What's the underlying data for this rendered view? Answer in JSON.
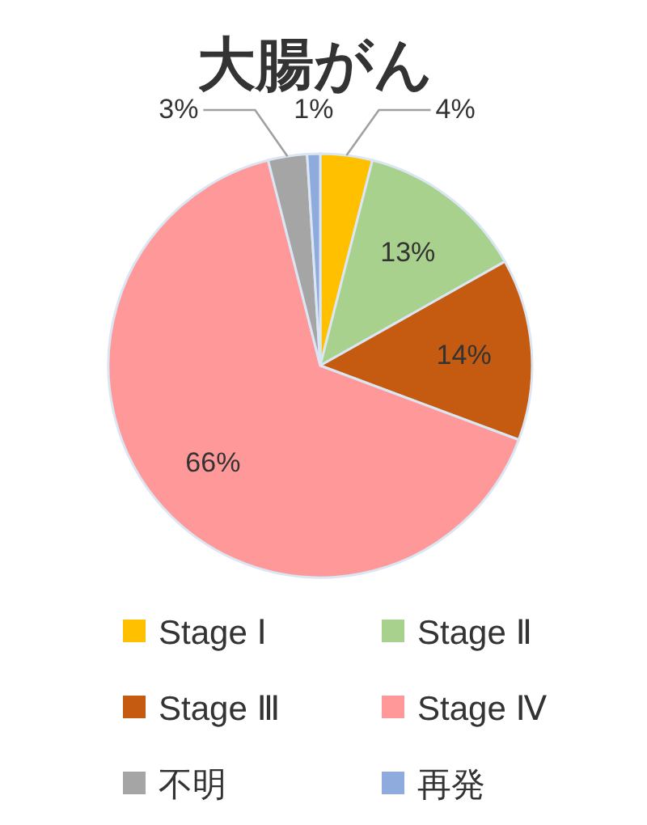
{
  "chart_data": {
    "type": "pie",
    "title": "大腸がん",
    "categories": [
      "Stage Ⅰ",
      "Stage Ⅱ",
      "Stage Ⅲ",
      "Stage Ⅳ",
      "不明",
      "再発"
    ],
    "values": [
      4,
      13,
      14,
      66,
      3,
      1
    ],
    "colors": [
      "#ffc000",
      "#a9d18e",
      "#c55a11",
      "#ff9999",
      "#a5a5a5",
      "#8faadc"
    ],
    "value_labels": [
      "4%",
      "13%",
      "14%",
      "66%",
      "3%",
      "1%"
    ],
    "legend": "bottom"
  }
}
